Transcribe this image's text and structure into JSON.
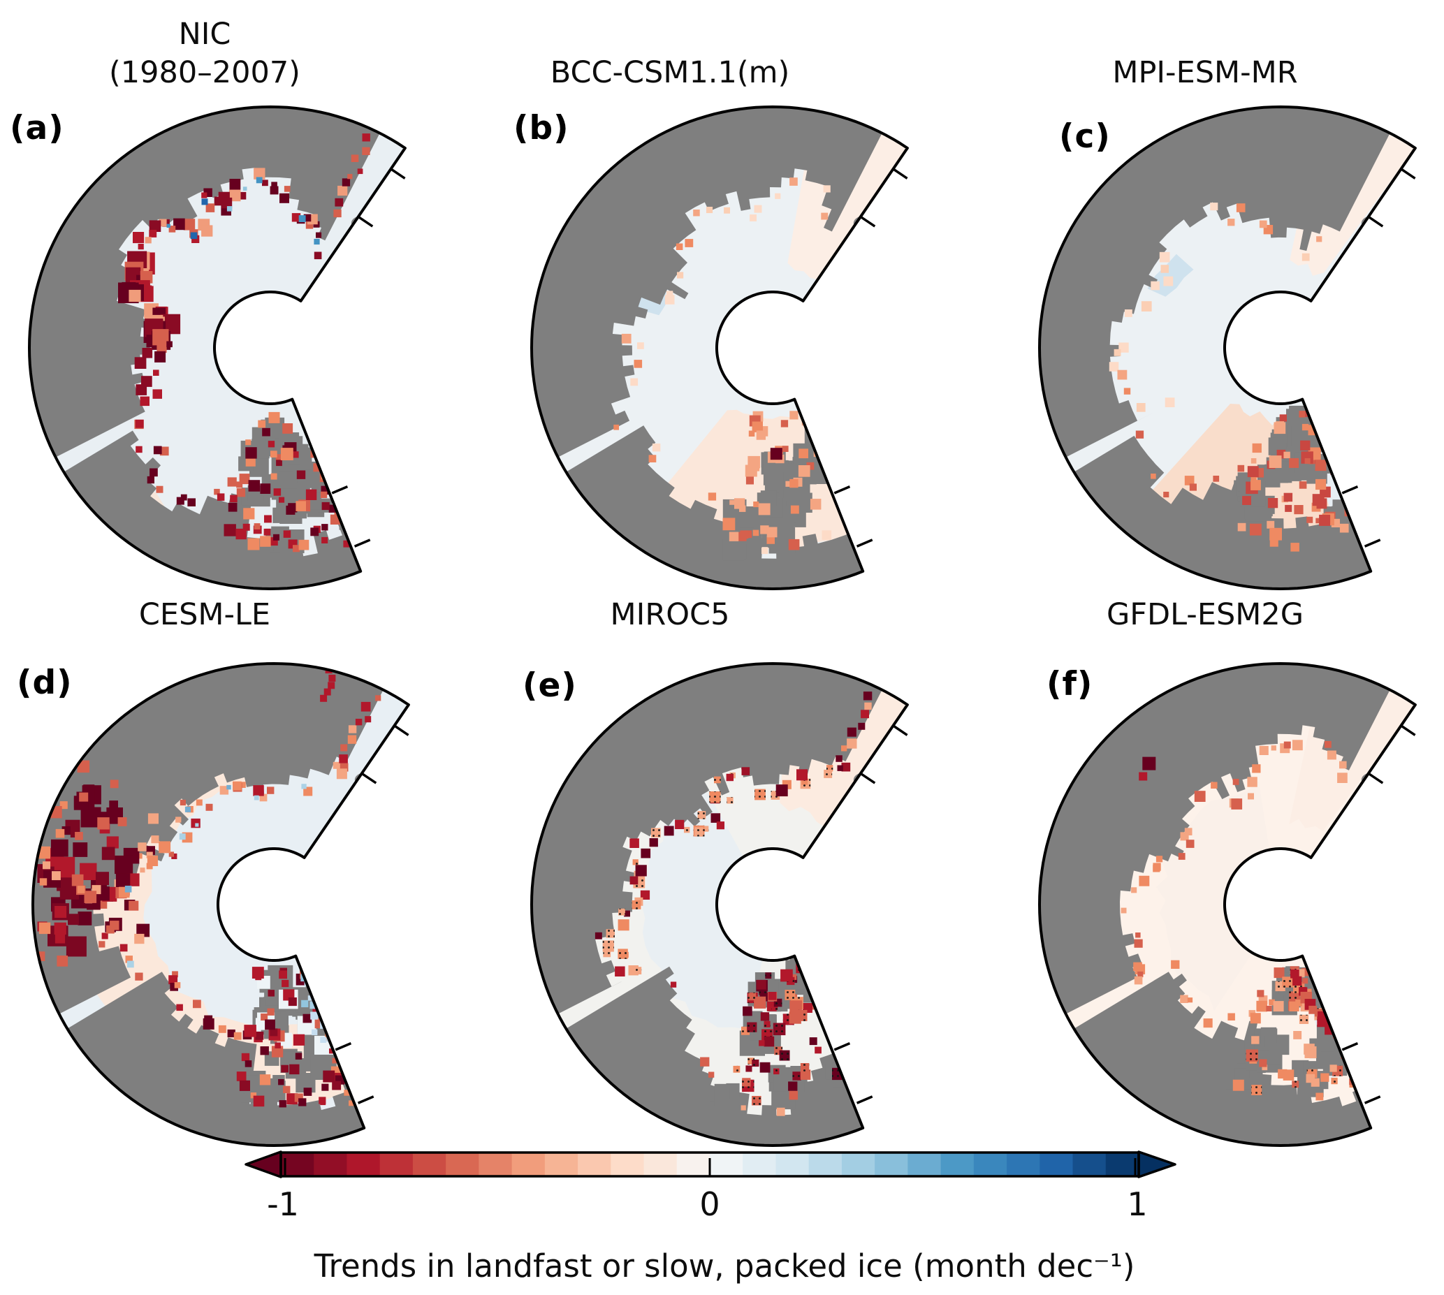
{
  "panels": [
    {
      "id": "a",
      "label": "(a)",
      "title_line1": "NIC",
      "title_line2": "(1980–2007)",
      "ocean_color": "#e9eff3"
    },
    {
      "id": "b",
      "label": "(b)",
      "title_line1": "BCC-CSM1.1(m)",
      "title_line2": "",
      "ocean_color": "#ecf1f4"
    },
    {
      "id": "c",
      "label": "(c)",
      "title_line1": "MPI-ESM-MR",
      "title_line2": "",
      "ocean_color": "#ecf1f4"
    },
    {
      "id": "d",
      "label": "(d)",
      "title_line1": "CESM-LE",
      "title_line2": "",
      "ocean_color": "#e8eff4"
    },
    {
      "id": "e",
      "label": "(e)",
      "title_line1": "MIROC5",
      "title_line2": "",
      "ocean_color": "#f2f2ef"
    },
    {
      "id": "f",
      "label": "(f)",
      "title_line1": "GFDL-ESM2G",
      "title_line2": "",
      "ocean_color": "#fdf2ea"
    }
  ],
  "colorbar": {
    "tick_labels": [
      "-1",
      "0",
      "1"
    ],
    "n_segments": 26,
    "colormap_anchors": [
      "#67001f",
      "#b2182b",
      "#d6604d",
      "#f4a582",
      "#fddbc7",
      "#f7f7f7",
      "#d1e5f0",
      "#92c5de",
      "#4393c3",
      "#2166ac",
      "#053061"
    ],
    "left_extend_color": "#67001f",
    "right_extend_color": "#053061"
  },
  "caption": "Trends in landfast or slow, packed ice (month dec⁻¹)",
  "map_colors": {
    "land": "#7f7f7f",
    "coastline": "#000000",
    "near_zero_negative": "#eaf0f4",
    "near_zero_positive": "#fdf3ec"
  }
}
